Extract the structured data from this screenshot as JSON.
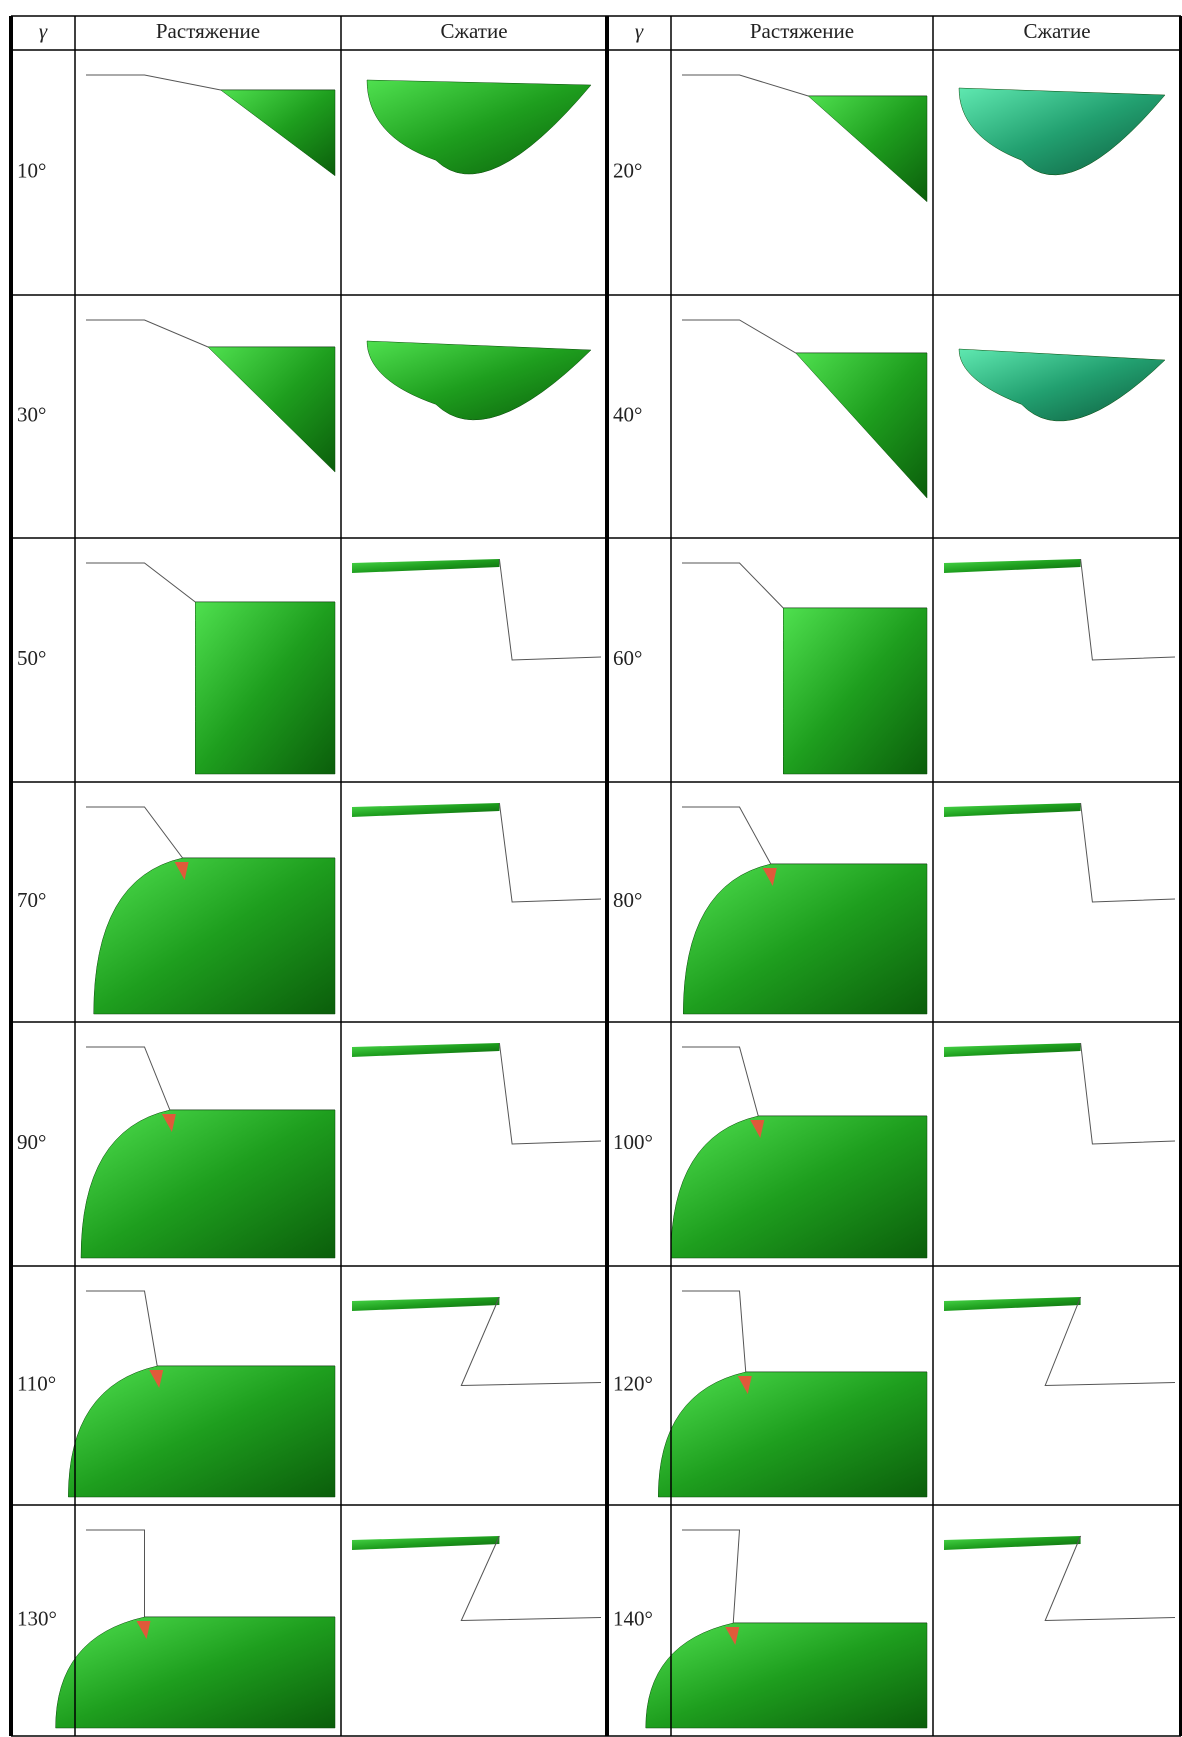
{
  "table": {
    "header": [
      "γ",
      "Растяжение",
      "Сжатие",
      "γ",
      "Растяжение",
      "Сжатие"
    ],
    "rows": [
      [
        "10°",
        "20°"
      ],
      [
        "30°",
        "40°"
      ],
      [
        "50°",
        "60°"
      ],
      [
        "70°",
        "80°"
      ],
      [
        "90°",
        "100°"
      ],
      [
        "110°",
        "120°"
      ],
      [
        "130°",
        "140°"
      ]
    ]
  }
}
